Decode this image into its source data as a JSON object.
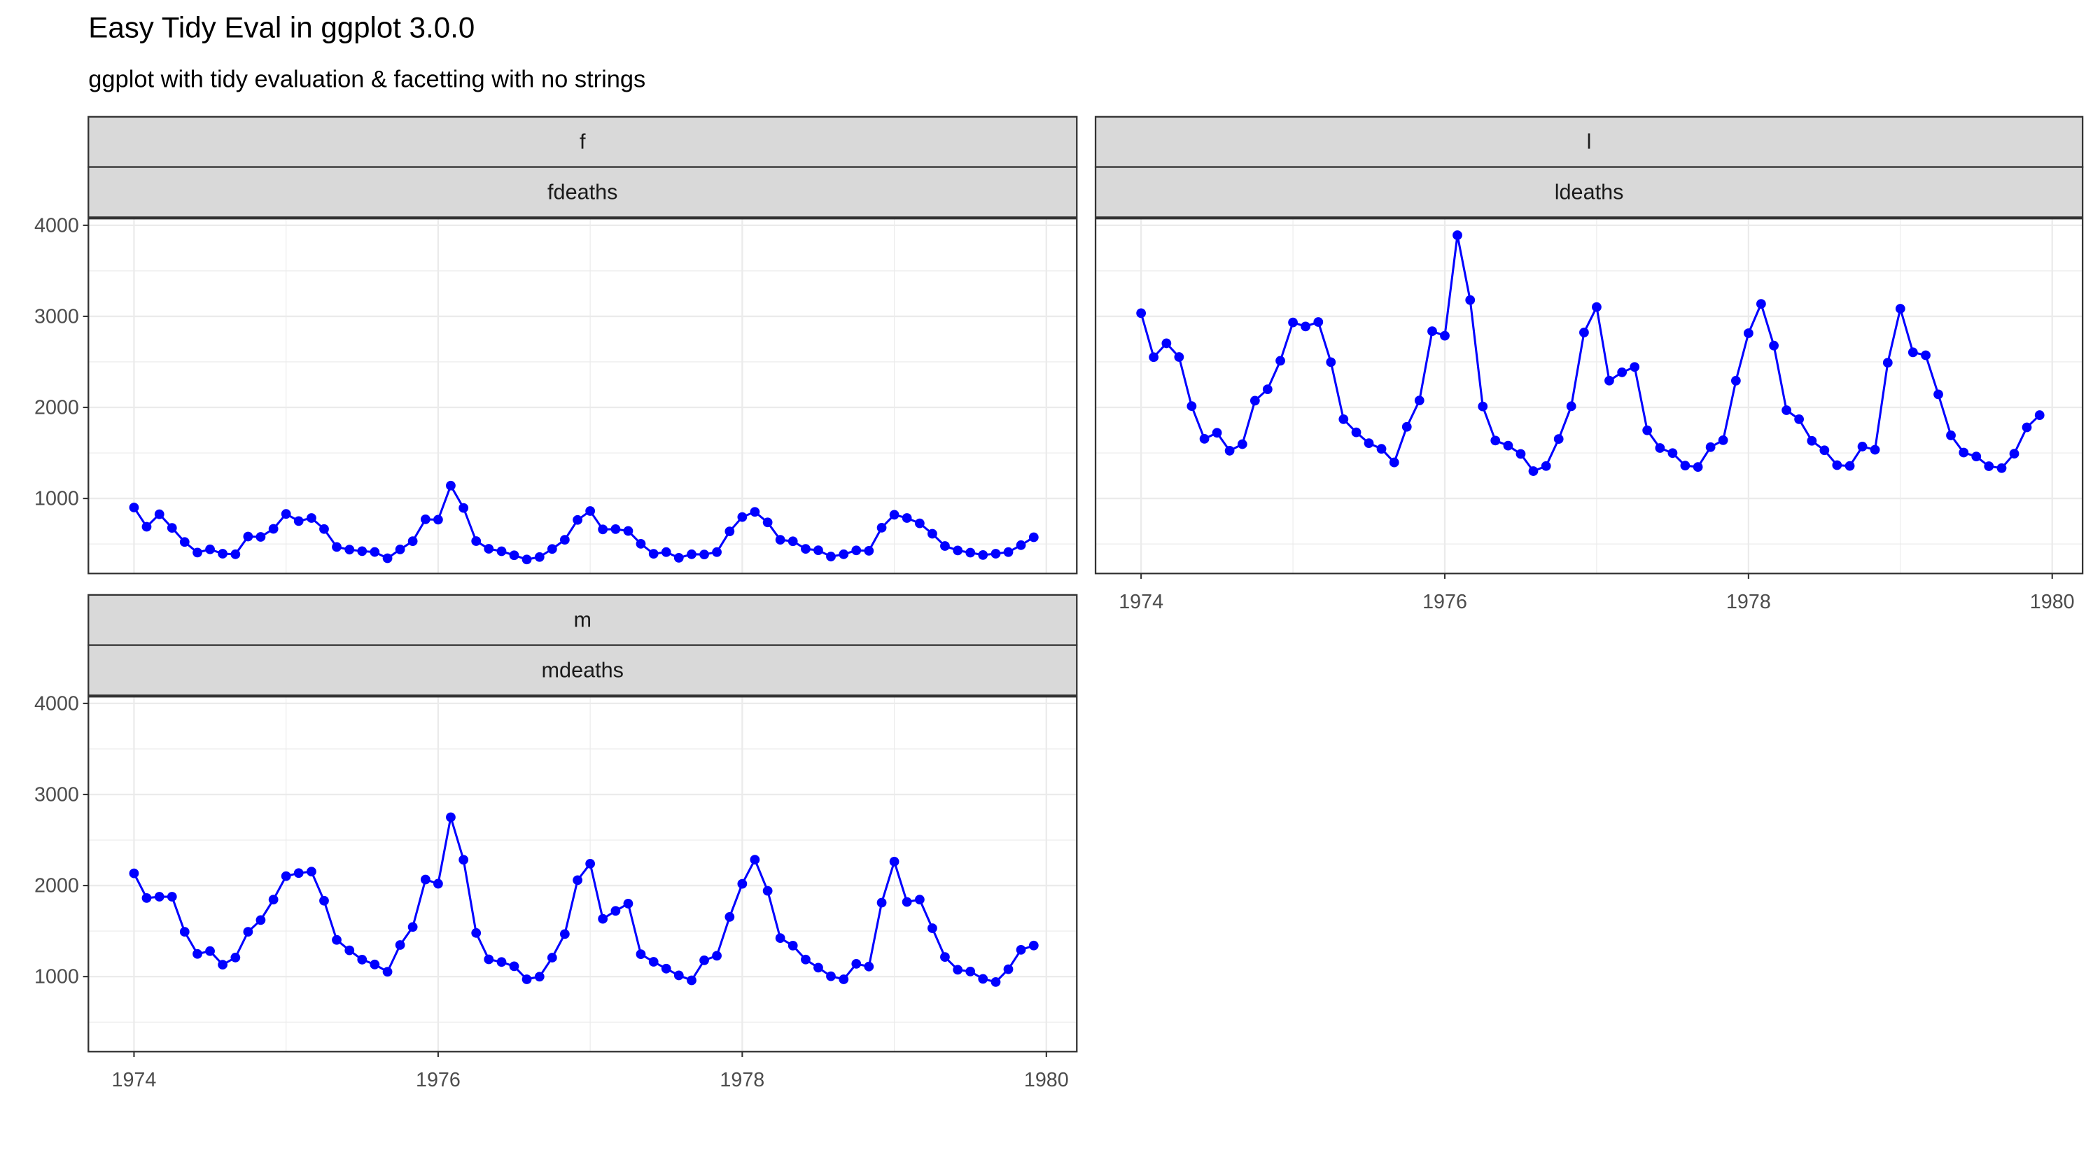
{
  "title": "Easy Tidy Eval in ggplot 3.0.0",
  "subtitle": "ggplot with tidy evaluation & facetting with no strings",
  "chart_data": [
    {
      "type": "line",
      "strips": [
        "f",
        "fdeaths"
      ],
      "color": "#0000ff",
      "grid": true,
      "x": [
        1974,
        1974.083,
        1974.167,
        1974.25,
        1974.333,
        1974.417,
        1974.5,
        1974.583,
        1974.667,
        1974.75,
        1974.833,
        1974.917,
        1975,
        1975.083,
        1975.167,
        1975.25,
        1975.333,
        1975.417,
        1975.5,
        1975.583,
        1975.667,
        1975.75,
        1975.833,
        1975.917,
        1976,
        1976.083,
        1976.167,
        1976.25,
        1976.333,
        1976.417,
        1976.5,
        1976.583,
        1976.667,
        1976.75,
        1976.833,
        1976.917,
        1977,
        1977.083,
        1977.167,
        1977.25,
        1977.333,
        1977.417,
        1977.5,
        1977.583,
        1977.667,
        1977.75,
        1977.833,
        1977.917,
        1978,
        1978.083,
        1978.167,
        1978.25,
        1978.333,
        1978.417,
        1978.5,
        1978.583,
        1978.667,
        1978.75,
        1978.833,
        1978.917,
        1979,
        1979.083,
        1979.167,
        1979.25,
        1979.333,
        1979.417,
        1979.5,
        1979.583,
        1979.667,
        1979.75,
        1979.833,
        1979.917
      ],
      "values": [
        901,
        689,
        827,
        677,
        522,
        406,
        441,
        393,
        387,
        582,
        578,
        666,
        830,
        752,
        785,
        664,
        467,
        438,
        421,
        412,
        343,
        440,
        531,
        771,
        767,
        1141,
        896,
        532,
        447,
        420,
        376,
        330,
        357,
        445,
        546,
        764,
        862,
        660,
        663,
        643,
        502,
        392,
        411,
        348,
        387,
        385,
        411,
        638,
        796,
        853,
        737,
        546,
        530,
        446,
        431,
        362,
        387,
        430,
        425,
        679,
        821,
        785,
        727,
        612,
        478,
        429,
        405,
        379,
        393,
        411,
        487,
        574
      ],
      "xlim": [
        1973.7,
        1980.2
      ],
      "ylim": [
        176,
        4074
      ],
      "xticks": [
        1974,
        1976,
        1978,
        1980
      ],
      "yticks": [
        1000,
        2000,
        3000,
        4000
      ],
      "x_minor_ticks": [
        1975,
        1977,
        1979
      ],
      "y_minor_ticks": [
        500,
        1500,
        2500,
        3500
      ]
    },
    {
      "type": "line",
      "strips": [
        "l",
        "ldeaths"
      ],
      "color": "#0000ff",
      "grid": true,
      "x": [
        1974,
        1974.083,
        1974.167,
        1974.25,
        1974.333,
        1974.417,
        1974.5,
        1974.583,
        1974.667,
        1974.75,
        1974.833,
        1974.917,
        1975,
        1975.083,
        1975.167,
        1975.25,
        1975.333,
        1975.417,
        1975.5,
        1975.583,
        1975.667,
        1975.75,
        1975.833,
        1975.917,
        1976,
        1976.083,
        1976.167,
        1976.25,
        1976.333,
        1976.417,
        1976.5,
        1976.583,
        1976.667,
        1976.75,
        1976.833,
        1976.917,
        1977,
        1977.083,
        1977.167,
        1977.25,
        1977.333,
        1977.417,
        1977.5,
        1977.583,
        1977.667,
        1977.75,
        1977.833,
        1977.917,
        1978,
        1978.083,
        1978.167,
        1978.25,
        1978.333,
        1978.417,
        1978.5,
        1978.583,
        1978.667,
        1978.75,
        1978.833,
        1978.917,
        1979,
        1979.083,
        1979.167,
        1979.25,
        1979.333,
        1979.417,
        1979.5,
        1979.583,
        1979.667,
        1979.75,
        1979.833,
        1979.917
      ],
      "values": [
        3035,
        2552,
        2704,
        2554,
        2014,
        1655,
        1721,
        1524,
        1596,
        2074,
        2199,
        2512,
        2933,
        2889,
        2938,
        2497,
        1870,
        1726,
        1607,
        1545,
        1396,
        1787,
        2076,
        2837,
        2787,
        3891,
        3179,
        2011,
        1636,
        1580,
        1489,
        1300,
        1356,
        1653,
        2013,
        2823,
        3102,
        2294,
        2385,
        2444,
        1748,
        1554,
        1498,
        1361,
        1346,
        1564,
        1640,
        2293,
        2815,
        3137,
        2679,
        1969,
        1870,
        1633,
        1529,
        1366,
        1357,
        1570,
        1535,
        2491,
        3084,
        2605,
        2573,
        2143,
        1693,
        1504,
        1461,
        1354,
        1333,
        1492,
        1781,
        1915
      ],
      "xlim": [
        1973.7,
        1980.2
      ],
      "ylim": [
        176,
        4074
      ],
      "xticks": [
        1974,
        1976,
        1978,
        1980
      ],
      "yticks": [
        1000,
        2000,
        3000,
        4000
      ],
      "x_minor_ticks": [
        1975,
        1977,
        1979
      ],
      "y_minor_ticks": [
        500,
        1500,
        2500,
        3500
      ]
    },
    {
      "type": "line",
      "strips": [
        "m",
        "mdeaths"
      ],
      "color": "#0000ff",
      "grid": true,
      "x": [
        1974,
        1974.083,
        1974.167,
        1974.25,
        1974.333,
        1974.417,
        1974.5,
        1974.583,
        1974.667,
        1974.75,
        1974.833,
        1974.917,
        1975,
        1975.083,
        1975.167,
        1975.25,
        1975.333,
        1975.417,
        1975.5,
        1975.583,
        1975.667,
        1975.75,
        1975.833,
        1975.917,
        1976,
        1976.083,
        1976.167,
        1976.25,
        1976.333,
        1976.417,
        1976.5,
        1976.583,
        1976.667,
        1976.75,
        1976.833,
        1976.917,
        1977,
        1977.083,
        1977.167,
        1977.25,
        1977.333,
        1977.417,
        1977.5,
        1977.583,
        1977.667,
        1977.75,
        1977.833,
        1977.917,
        1978,
        1978.083,
        1978.167,
        1978.25,
        1978.333,
        1978.417,
        1978.5,
        1978.583,
        1978.667,
        1978.75,
        1978.833,
        1978.917,
        1979,
        1979.083,
        1979.167,
        1979.25,
        1979.333,
        1979.417,
        1979.5,
        1979.583,
        1979.667,
        1979.75,
        1979.833,
        1979.917
      ],
      "values": [
        2134,
        1863,
        1877,
        1877,
        1492,
        1249,
        1280,
        1131,
        1209,
        1492,
        1621,
        1846,
        2103,
        2137,
        2153,
        1833,
        1403,
        1288,
        1186,
        1133,
        1053,
        1347,
        1545,
        2066,
        2020,
        2750,
        2283,
        1479,
        1189,
        1160,
        1113,
        970,
        999,
        1208,
        1467,
        2059,
        2240,
        1634,
        1722,
        1801,
        1246,
        1162,
        1087,
        1013,
        959,
        1179,
        1229,
        1655,
        2019,
        2284,
        1942,
        1423,
        1340,
        1187,
        1098,
        1004,
        970,
        1140,
        1110,
        1812,
        2263,
        1820,
        1846,
        1531,
        1215,
        1075,
        1056,
        975,
        940,
        1081,
        1294,
        1341
      ],
      "xlim": [
        1973.7,
        1980.2
      ],
      "ylim": [
        176,
        4074
      ],
      "xticks": [
        1974,
        1976,
        1978,
        1980
      ],
      "yticks": [
        1000,
        2000,
        3000,
        4000
      ],
      "x_minor_ticks": [
        1975,
        1977,
        1979
      ],
      "y_minor_ticks": [
        500,
        1500,
        2500,
        3500
      ]
    }
  ]
}
